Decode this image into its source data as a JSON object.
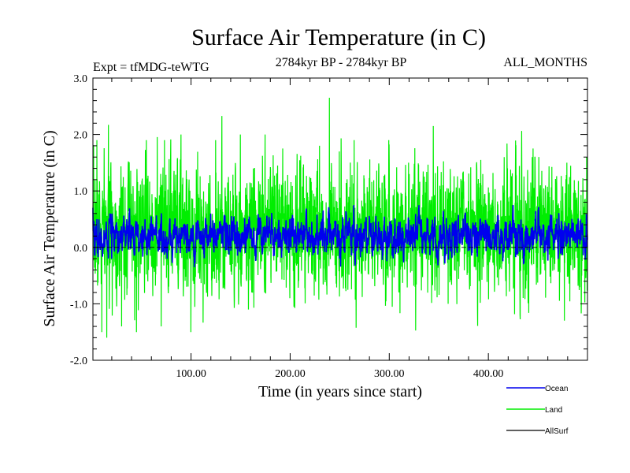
{
  "chart_data": {
    "type": "line",
    "title": "Surface Air Temperature (in C)",
    "subtitle_left": "Expt = tfMDG-teWTG",
    "subtitle_center": "2784kyr BP - 2784kyr BP",
    "subtitle_right": "ALL_MONTHS",
    "xlabel": "Time (in years since start)",
    "ylabel": "Surface Air Temperature (in C)",
    "xlim": [
      1,
      500
    ],
    "ylim": [
      -2.0,
      3.0
    ],
    "x_ticks": [
      100,
      200,
      300,
      400
    ],
    "x_tick_labels": [
      "100.00",
      "200.00",
      "300.00",
      "400.00"
    ],
    "y_ticks": [
      -2,
      -1,
      0,
      1,
      2,
      3
    ],
    "y_tick_labels": [
      "-2.0",
      "-1.0",
      "0.0",
      "1.0",
      "2.0",
      "3.0"
    ],
    "reference_line_y": 0,
    "legend_position": "bottom-right",
    "series": [
      {
        "name": "Land",
        "color": "#00ee00",
        "values_key_points": [
          [
            1,
            0.6
          ],
          [
            5,
            1.9
          ],
          [
            10,
            -1.5
          ],
          [
            15,
            -1.6
          ],
          [
            30,
            -1.4
          ],
          [
            45,
            -1.5
          ],
          [
            55,
            1.9
          ],
          [
            70,
            -1.4
          ],
          [
            90,
            2.0
          ],
          [
            100,
            -1.5
          ],
          [
            125,
            1.9
          ],
          [
            150,
            2.0
          ],
          [
            175,
            2.0
          ],
          [
            200,
            -0.9
          ],
          [
            230,
            1.8
          ],
          [
            240,
            2.65
          ],
          [
            250,
            1.7
          ],
          [
            265,
            1.9
          ],
          [
            300,
            1.9
          ],
          [
            320,
            1.5
          ],
          [
            345,
            2.15
          ],
          [
            360,
            -1.0
          ],
          [
            395,
            1.3
          ],
          [
            420,
            1.4
          ],
          [
            445,
            1.6
          ],
          [
            480,
            1.5
          ],
          [
            495,
            -0.5
          ],
          [
            500,
            1.6
          ]
        ],
        "mean_level": 0.3,
        "amplitude_range": [
          -1.6,
          2.65
        ]
      },
      {
        "name": "Ocean",
        "color": "#0000ee",
        "values_key_points": [
          [
            1,
            0.7
          ],
          [
            5,
            0.5
          ],
          [
            20,
            -0.2
          ],
          [
            60,
            0.55
          ],
          [
            120,
            0.6
          ],
          [
            160,
            0.35
          ],
          [
            200,
            0.5
          ],
          [
            240,
            0.6
          ],
          [
            280,
            0.25
          ],
          [
            310,
            0.45
          ],
          [
            360,
            0.25
          ],
          [
            400,
            0.4
          ],
          [
            450,
            0.25
          ],
          [
            480,
            0.35
          ],
          [
            500,
            0.0
          ]
        ],
        "mean_level": 0.2,
        "amplitude_range": [
          -0.35,
          0.75
        ]
      },
      {
        "name": "AllSurf",
        "color": "#000000",
        "values_key_points": [],
        "mean_level": null
      }
    ]
  }
}
